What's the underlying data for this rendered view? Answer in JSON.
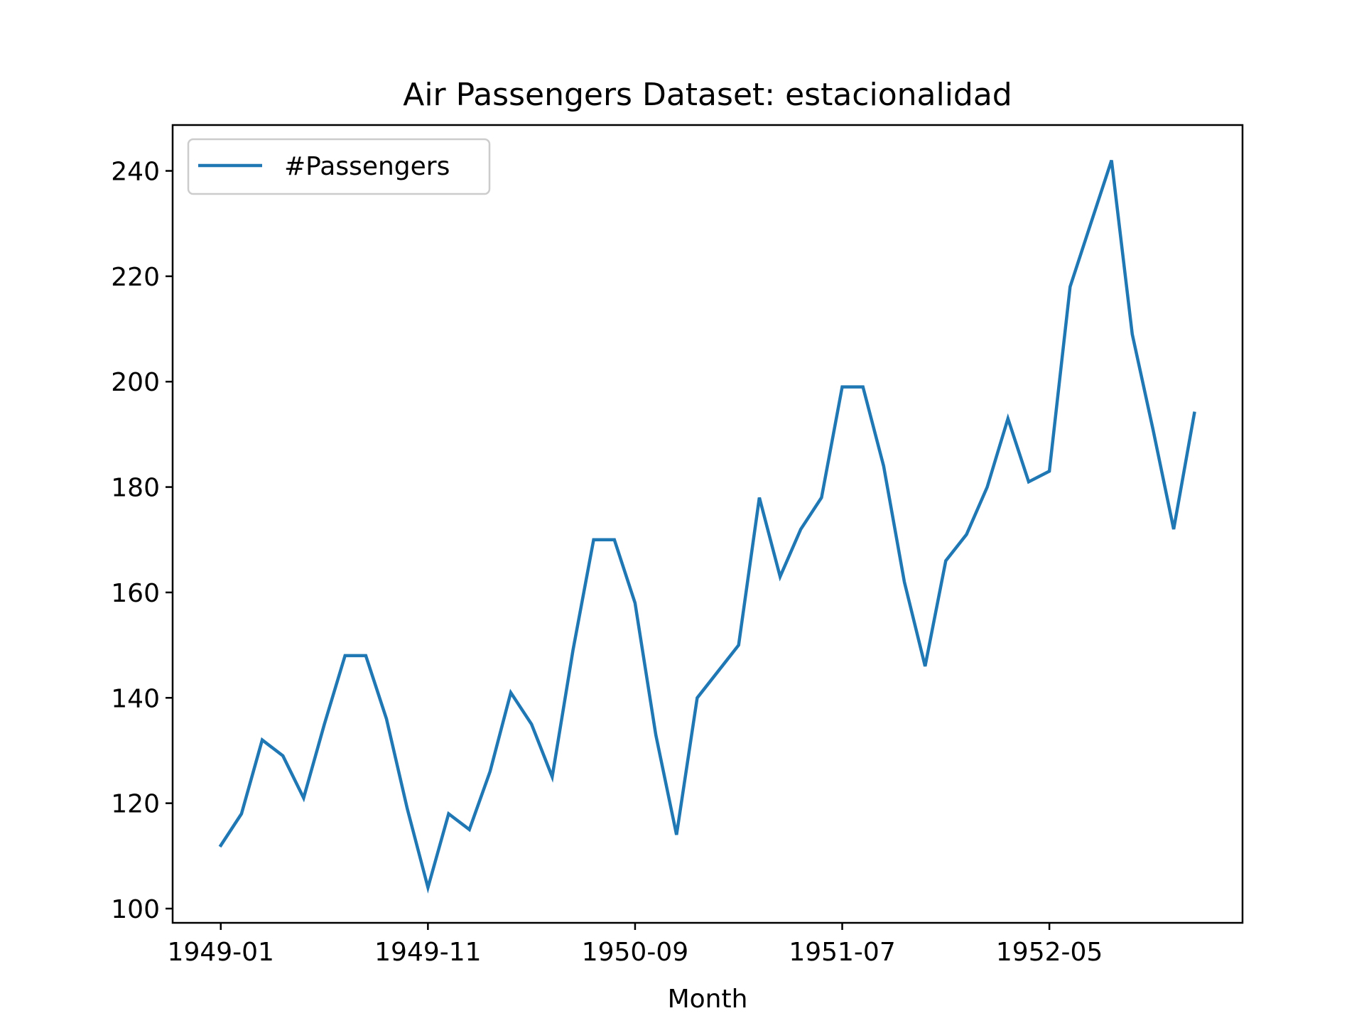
{
  "chart_data": {
    "type": "line",
    "title": "Air Passengers Dataset: estacionalidad",
    "xlabel": "Month",
    "ylabel": "",
    "x": [
      "1949-01",
      "1949-02",
      "1949-03",
      "1949-04",
      "1949-05",
      "1949-06",
      "1949-07",
      "1949-08",
      "1949-09",
      "1949-10",
      "1949-11",
      "1949-12",
      "1950-01",
      "1950-02",
      "1950-03",
      "1950-04",
      "1950-05",
      "1950-06",
      "1950-07",
      "1950-08",
      "1950-09",
      "1950-10",
      "1950-11",
      "1950-12",
      "1951-01",
      "1951-02",
      "1951-03",
      "1951-04",
      "1951-05",
      "1951-06",
      "1951-07",
      "1951-08",
      "1951-09",
      "1951-10",
      "1951-11",
      "1951-12",
      "1952-01",
      "1952-02",
      "1952-03",
      "1952-04",
      "1952-05",
      "1952-06",
      "1952-07",
      "1952-08",
      "1952-09",
      "1952-10",
      "1952-11",
      "1952-12"
    ],
    "series": [
      {
        "name": "#Passengers",
        "color": "#1f77b4",
        "values": [
          112,
          118,
          132,
          129,
          121,
          135,
          148,
          148,
          136,
          119,
          104,
          118,
          115,
          126,
          141,
          135,
          125,
          149,
          170,
          170,
          158,
          133,
          114,
          140,
          145,
          150,
          178,
          163,
          172,
          178,
          199,
          199,
          184,
          162,
          146,
          166,
          171,
          180,
          193,
          181,
          183,
          218,
          230,
          242,
          209,
          191,
          172,
          194
        ]
      }
    ],
    "xticks": [
      "1949-01",
      "1949-11",
      "1950-09",
      "1951-07",
      "1952-05"
    ],
    "yticks": [
      "100",
      "120",
      "140",
      "160",
      "180",
      "200",
      "220",
      "240"
    ],
    "ylim": [
      97.3,
      248.7
    ],
    "grid": false,
    "legend": "upper-left"
  }
}
